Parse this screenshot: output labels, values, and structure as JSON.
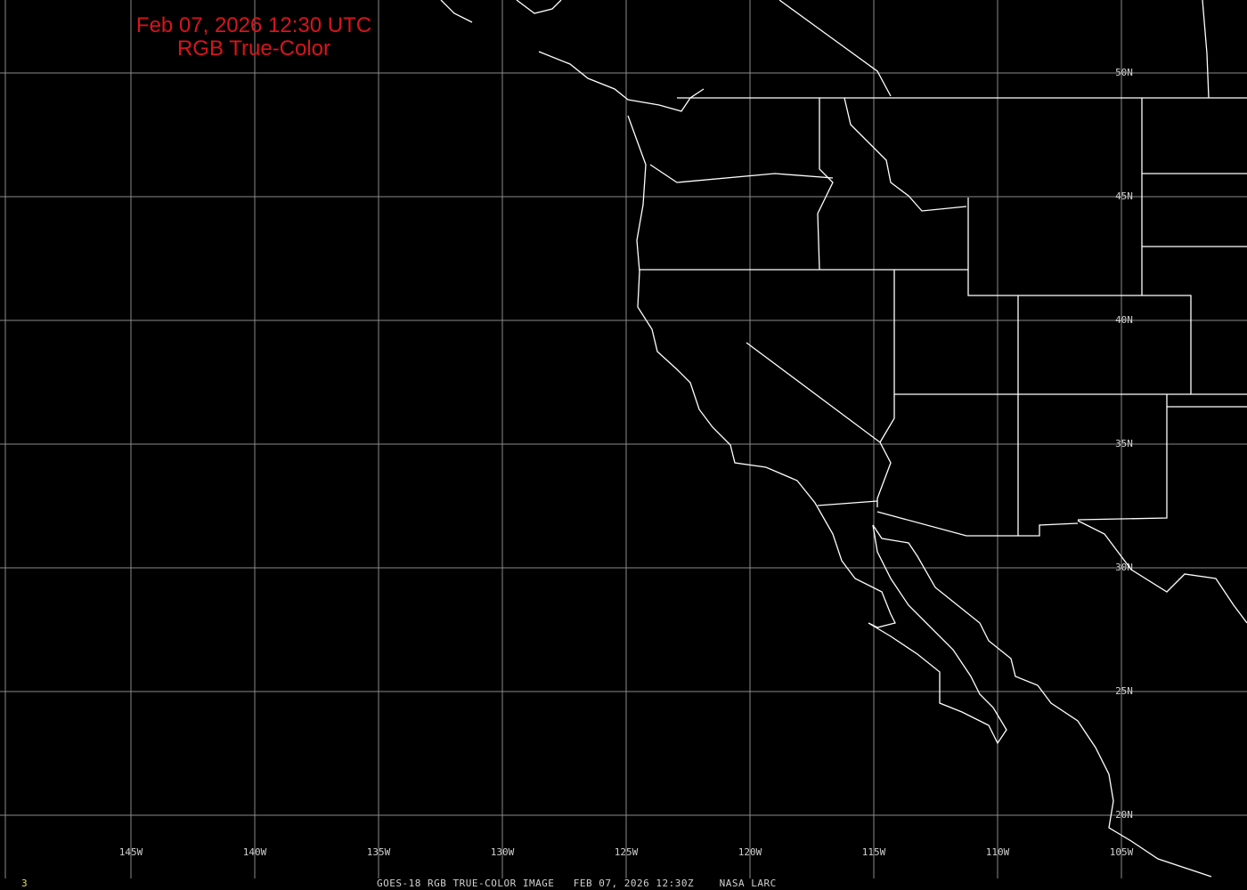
{
  "title": {
    "line1": "Feb 07, 2026 12:30 UTC",
    "line2": "RGB True-Color"
  },
  "footer": {
    "frame_number": "3",
    "caption": "GOES-18 RGB TRUE-COLOR IMAGE   FEB 07, 2026 12:30Z    NASA LARC"
  },
  "grid": {
    "longitudes": [
      "145W",
      "140W",
      "135W",
      "130W",
      "125W",
      "120W",
      "115W",
      "110W",
      "105W"
    ],
    "latitudes": [
      "50N",
      "45N",
      "40N",
      "35N",
      "30N",
      "25N",
      "20N"
    ]
  },
  "colors": {
    "background": "#000000",
    "title": "#d8141c",
    "grid": "#8a8a8a",
    "coastline": "#ffffff",
    "frame_number": "#e8e040"
  }
}
